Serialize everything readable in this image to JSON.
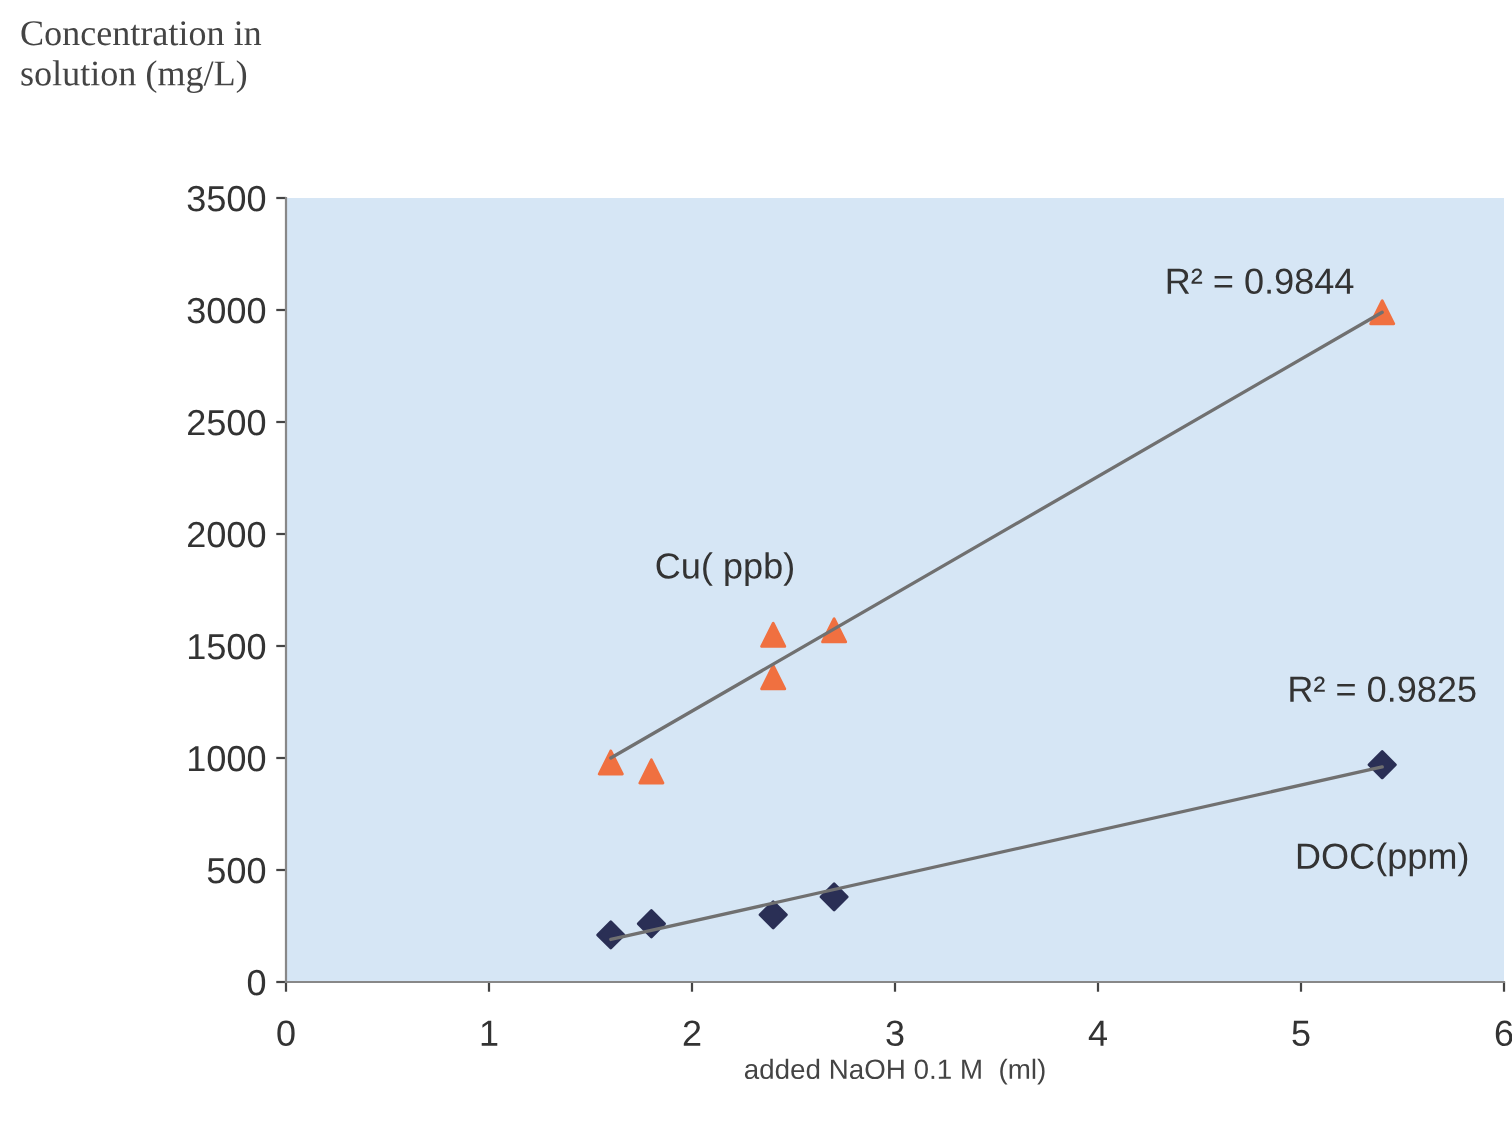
{
  "chart_data": {
    "type": "scatter",
    "ylabel": "Concentration in\nsolution (mg/L)",
    "xlabel": "added NaOH 0.1 M  (ml)",
    "xlim": [
      0,
      6
    ],
    "xticks": [
      0,
      1,
      2,
      3,
      4,
      5,
      6
    ],
    "ylim": [
      0,
      3500
    ],
    "yticks": [
      0,
      500,
      1000,
      1500,
      2000,
      2500,
      3000,
      3500
    ],
    "grid": false,
    "legend": false,
    "series": [
      {
        "name": "Cu( ppb)",
        "color": "#f07040",
        "marker": "triangle",
        "x": [
          1.6,
          1.8,
          2.4,
          2.4,
          2.7,
          5.4
        ],
        "values": [
          980,
          940,
          1550,
          1360,
          1570,
          2990
        ]
      },
      {
        "name": "DOC(ppm)",
        "color": "#2a2f55",
        "marker": "diamond",
        "x": [
          1.6,
          1.8,
          2.4,
          2.7,
          5.4
        ],
        "values": [
          210,
          260,
          300,
          380,
          970
        ]
      },
      {
        "type": "line",
        "color": "#707070",
        "x": [
          1.6,
          5.4
        ],
        "values": [
          1000,
          2990
        ]
      },
      {
        "type": "line",
        "color": "#707070",
        "x": [
          1.6,
          5.4
        ],
        "values": [
          190,
          960
        ]
      }
    ],
    "annotations": [
      "R² = 0.9844",
      "R² = 0.9825"
    ]
  }
}
